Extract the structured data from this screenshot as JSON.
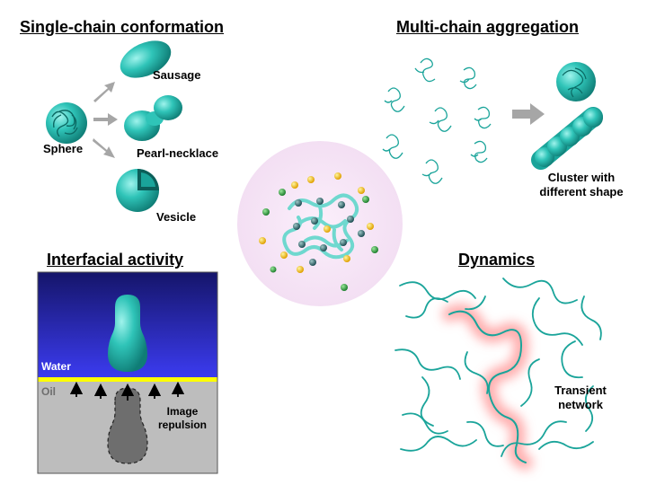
{
  "panels": {
    "single_chain": {
      "title": "Single-chain conformation",
      "sphere_label": "Sphere",
      "sausage_label": "Sausage",
      "pearl_label": "Pearl-necklace",
      "vesicle_label": "Vesicle"
    },
    "multi_chain": {
      "title": "Multi-chain aggregation",
      "cluster_label_line1": "Cluster with",
      "cluster_label_line2": "different shape"
    },
    "interfacial": {
      "title": "Interfacial activity",
      "water_label": "Water",
      "oil_label": "Oil",
      "image_label_line1": "Image",
      "image_label_line2": "repulsion"
    },
    "dynamics": {
      "title": "Dynamics",
      "network_label_line1": "Transient",
      "network_label_line2": "network"
    }
  },
  "colors": {
    "teal": "#2fc4b8",
    "teal_dark": "#178f87",
    "arrow_gray": "#a6a6a6",
    "water_top": "#1a1a7a",
    "water_bottom": "#3434e6",
    "interface_yellow": "#ffff00",
    "oil_gray": "#bdbdbd",
    "center_glow": "#f6e4f6",
    "highlight_pink": "#ff9a9a"
  }
}
